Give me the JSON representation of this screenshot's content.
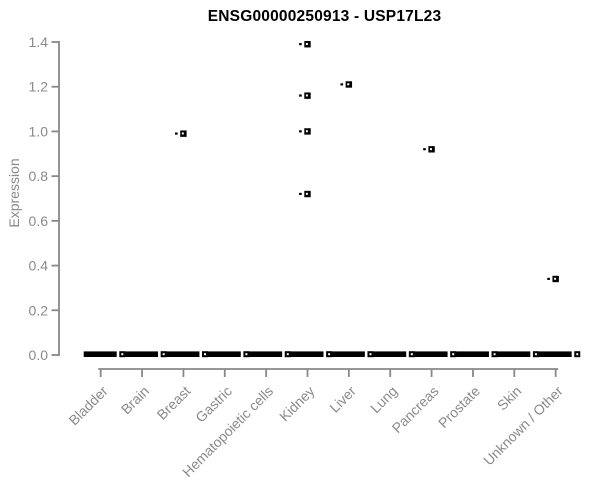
{
  "chart_data": {
    "type": "scatter",
    "subtype": "collapsed-boxplots-with-outlier-points",
    "title": "ENSG00000250913 - USP17L23",
    "xlabel": "",
    "ylabel": "Expression",
    "ylim": [
      0.0,
      1.4
    ],
    "yticks": [
      0.0,
      0.2,
      0.4,
      0.6,
      0.8,
      1.0,
      1.2,
      1.4
    ],
    "grid": false,
    "legend": "none",
    "categories": [
      "Bladder",
      "Brain",
      "Breast",
      "Gastric",
      "Hematopoietic cells",
      "Kidney",
      "Liver",
      "Lung",
      "Pancreas",
      "Prostate",
      "Skin",
      "Unknown / Other"
    ],
    "baseline": {
      "value": 0.0,
      "description": "thick black collapsed box bar drawn at expression 0 for every category"
    },
    "points": [
      {
        "category": "Breast",
        "value": 0.99
      },
      {
        "category": "Kidney",
        "value": 1.39
      },
      {
        "category": "Kidney",
        "value": 1.16
      },
      {
        "category": "Kidney",
        "value": 1.0
      },
      {
        "category": "Kidney",
        "value": 0.72
      },
      {
        "category": "Liver",
        "value": 1.21
      },
      {
        "category": "Pancreas",
        "value": 0.92
      },
      {
        "category": "Unknown / Other",
        "value": 0.34
      }
    ],
    "colors": {
      "marker": "#000000",
      "marker_center": "#ffffff",
      "axis_line": "#888888",
      "tick_label": "#8a8a8a",
      "title": "#000000",
      "background": "#ffffff"
    }
  }
}
